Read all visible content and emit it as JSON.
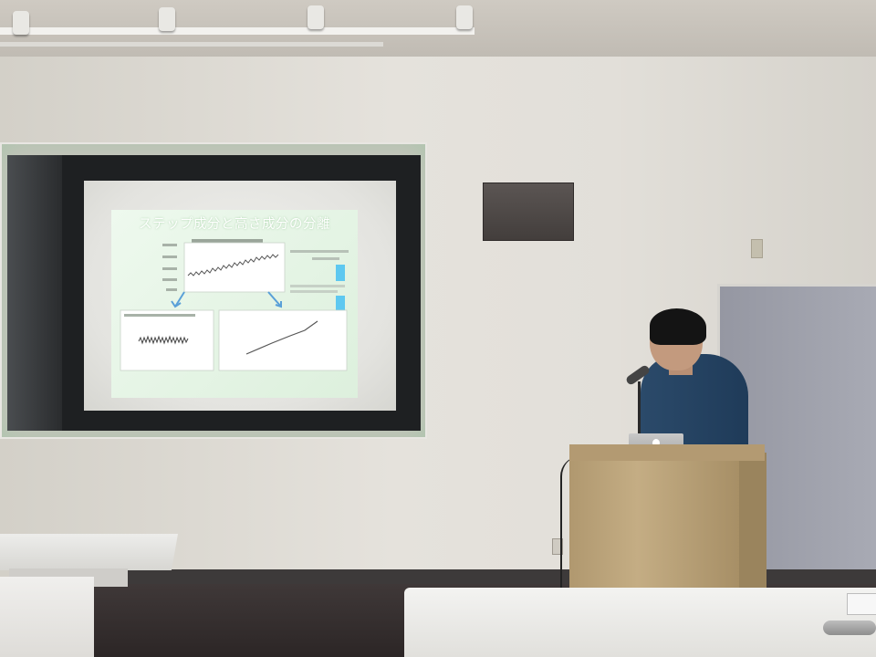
{
  "slide": {
    "title": "ステップ成分と高さ成分の分離"
  },
  "colors": {
    "slide_title": "#ffffff",
    "slide_background": "#e6f5e6",
    "accent_arrow": "#5aa0d8",
    "legend_bar": "#5ec8f0"
  }
}
